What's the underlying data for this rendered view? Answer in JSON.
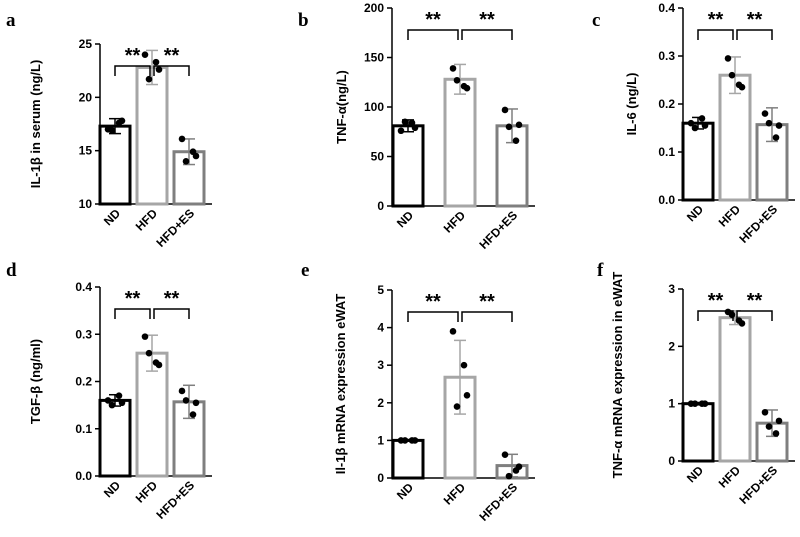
{
  "chart_data": [
    {
      "type": "bar",
      "panel": "a",
      "ylabel": "IL-1β in serum (ng/L)",
      "ylim": [
        10,
        25
      ],
      "yticks": [
        10,
        15,
        20,
        25
      ],
      "categories": [
        "ND",
        "HFD",
        "HFD+ES"
      ],
      "values": [
        17.3,
        22.8,
        14.9
      ],
      "errors": [
        0.7,
        1.6,
        1.2
      ],
      "points": [
        [
          17.0,
          17.6,
          16.9,
          17.8
        ],
        [
          24.0,
          23.3,
          21.7,
          22.6
        ],
        [
          16.1,
          14.9,
          14.0,
          14.5
        ]
      ],
      "colors": [
        "#000000",
        "#a6a6a6",
        "#7f7f7f"
      ],
      "significance": [
        "**",
        "**"
      ]
    },
    {
      "type": "bar",
      "panel": "b",
      "ylabel": "TNF-α(ng/L)",
      "ylim": [
        0,
        200
      ],
      "yticks": [
        0,
        50,
        100,
        150,
        200
      ],
      "categories": [
        "ND",
        "HFD",
        "HFD+ES"
      ],
      "values": [
        81,
        128,
        81
      ],
      "errors": [
        6,
        15,
        17
      ],
      "points": [
        [
          76,
          84,
          85,
          79
        ],
        [
          139,
          121,
          127,
          119
        ],
        [
          97,
          66,
          80,
          82
        ]
      ],
      "colors": [
        "#000000",
        "#a6a6a6",
        "#7f7f7f"
      ],
      "significance": [
        "**",
        "**"
      ]
    },
    {
      "type": "bar",
      "panel": "c",
      "ylabel": "IL-6 (ng/L)",
      "ylim": [
        0,
        0.4
      ],
      "yticks": [
        "0.0",
        "0.1",
        "0.2",
        "0.3",
        "0.4"
      ],
      "categories": [
        "ND",
        "HFD",
        "HFD+ES"
      ],
      "values": [
        0.16,
        0.26,
        0.157
      ],
      "errors": [
        0.012,
        0.038,
        0.035
      ],
      "points": [
        [
          0.16,
          0.17,
          0.15,
          0.155
        ],
        [
          0.295,
          0.24,
          0.26,
          0.235
        ],
        [
          0.18,
          0.13,
          0.16,
          0.155
        ]
      ],
      "colors": [
        "#000000",
        "#a6a6a6",
        "#7f7f7f"
      ],
      "significance": [
        "**",
        "**"
      ]
    },
    {
      "type": "bar",
      "panel": "d",
      "ylabel": "TGF-β (ng/ml)",
      "ylim": [
        0,
        0.4
      ],
      "yticks": [
        "0.0",
        "0.1",
        "0.2",
        "0.3",
        "0.4"
      ],
      "categories": [
        "ND",
        "HFD",
        "HFD+ES"
      ],
      "values": [
        0.16,
        0.26,
        0.157
      ],
      "errors": [
        0.012,
        0.038,
        0.035
      ],
      "points": [
        [
          0.16,
          0.17,
          0.15,
          0.155
        ],
        [
          0.295,
          0.24,
          0.26,
          0.235
        ],
        [
          0.18,
          0.13,
          0.16,
          0.155
        ]
      ],
      "colors": [
        "#000000",
        "#a6a6a6",
        "#7f7f7f"
      ],
      "significance": [
        "**",
        "**"
      ]
    },
    {
      "type": "bar",
      "panel": "e",
      "ylabel": "Il-1β mRNA expression eWAT",
      "ylim": [
        0,
        5
      ],
      "yticks": [
        0,
        1,
        2,
        3,
        4,
        5
      ],
      "categories": [
        "ND",
        "HFD",
        "HFD+ES"
      ],
      "values": [
        1.0,
        2.68,
        0.33
      ],
      "errors": [
        0.02,
        0.98,
        0.3
      ],
      "points": [
        [
          1,
          1,
          1,
          1
        ],
        [
          3.9,
          3.0,
          1.9,
          2.2
        ],
        [
          0.62,
          0.2,
          0.05,
          0.3
        ]
      ],
      "colors": [
        "#000000",
        "#a6a6a6",
        "#7f7f7f"
      ],
      "significance": [
        "**",
        "**"
      ]
    },
    {
      "type": "bar",
      "panel": "f",
      "ylabel": "TNF-α mRNA expression in eWAT",
      "ylim": [
        0,
        3
      ],
      "yticks": [
        0,
        1,
        2,
        3
      ],
      "categories": [
        "ND",
        "HFD",
        "HFD+ES"
      ],
      "values": [
        1.0,
        2.5,
        0.66
      ],
      "errors": [
        0.02,
        0.12,
        0.23
      ],
      "points": [
        [
          1,
          1,
          1,
          1
        ],
        [
          2.6,
          2.45,
          2.55,
          2.4
        ],
        [
          0.85,
          0.48,
          0.6,
          0.7
        ]
      ],
      "colors": [
        "#000000",
        "#a6a6a6",
        "#7f7f7f"
      ],
      "significance": [
        "**",
        "**"
      ]
    }
  ]
}
